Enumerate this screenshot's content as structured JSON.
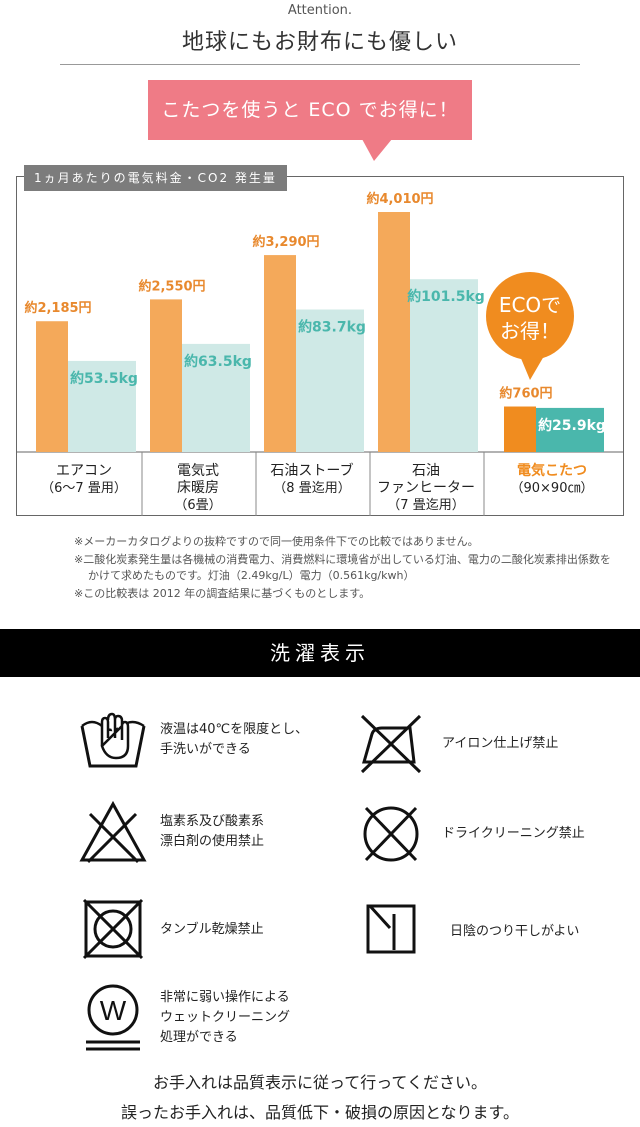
{
  "header": {
    "attention": "Attention.",
    "title": "地球にもお財布にも優しい"
  },
  "callout": {
    "text": "こたつを使うと ECO でお得に！"
  },
  "chart_data": {
    "type": "bar",
    "title": "1ヵ月あたりの電気料金・CO2 発生量",
    "categories": [
      {
        "lines": [
          "エアコン",
          "（6〜7 畳用）"
        ]
      },
      {
        "lines": [
          "電気式",
          "床暖房",
          "（6畳）"
        ]
      },
      {
        "lines": [
          "石油ストーブ",
          "（8 畳迄用）"
        ]
      },
      {
        "lines": [
          "石油",
          "ファンヒーター",
          "（7 畳迄用）"
        ]
      },
      {
        "lines": [
          "電気こたつ",
          "（90×90㎝）"
        ],
        "highlight": true
      }
    ],
    "series": [
      {
        "values": [
          2185,
          2550,
          3290,
          4010,
          760
        ],
        "color": "#f4a95a",
        "labels": [
          "約2,185円",
          "約2,550円",
          "約3,290円",
          "約4,010円",
          "約760円"
        ]
      },
      {
        "values": [
          53.5,
          63.5,
          83.7,
          101.5,
          25.9
        ],
        "color": "#cfe9e6",
        "label_color": "#4ab7ac",
        "labels": [
          "約53.5kg",
          "約63.5kg",
          "約83.7kg",
          "約101.5kg",
          "約25.9kg"
        ]
      }
    ],
    "badge": {
      "line1": "ECOで",
      "line2": "お得！",
      "color": "#f08c1f"
    },
    "highlight_color": "#f08c1f",
    "highlight_bar_color": "#f08c1f",
    "highlight_bar2_color": "#4ab7ac"
  },
  "notes": [
    "※メーカーカタログよりの抜粋ですので同一使用条件下での比較ではありません。",
    "※二酸化炭素発生量は各機械の消費電力、消費燃料に環境省が出している灯油、電力の二酸化炭素排出係数をかけて求めたものです。灯油（2.49kg/L）電力（0.561kg/kwh）",
    "※この比較表は 2012 年の調査結果に基づくものとします。"
  ],
  "washing": {
    "title": "洗濯表示",
    "items": [
      {
        "icon": "hand-wash-icon",
        "lines": [
          "液温は40℃を限度とし、",
          "手洗いができる"
        ]
      },
      {
        "icon": "no-iron-icon",
        "lines": [
          "アイロン仕上げ禁止"
        ]
      },
      {
        "icon": "no-bleach-icon",
        "lines": [
          "塩素系及び酸素系",
          "漂白剤の使用禁止"
        ]
      },
      {
        "icon": "no-dry-clean-icon",
        "lines": [
          "ドライクリーニング禁止"
        ]
      },
      {
        "icon": "no-tumble-dry-icon",
        "lines": [
          "タンブル乾燥禁止"
        ]
      },
      {
        "icon": "shade-line-dry-icon",
        "lines": [
          "日陰のつり干しがよい"
        ]
      },
      {
        "icon": "wet-clean-icon",
        "lines": [
          "非常に弱い操作による",
          "ウェットクリーニング",
          "処理ができる"
        ]
      }
    ]
  },
  "closing": [
    "お手入れは品質表示に従って行ってください。",
    "誤ったお手入れは、品質低下・破損の原因となります。"
  ]
}
